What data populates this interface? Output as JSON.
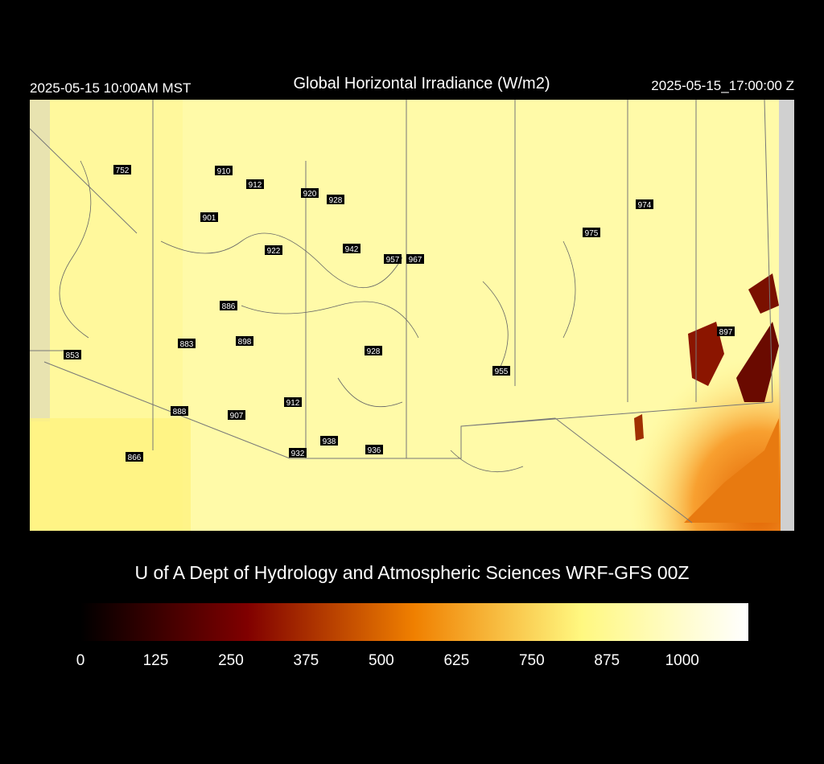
{
  "header": {
    "left": "2025-05-15 10:00AM MST",
    "title": "Global Horizontal Irradiance (W/m2)",
    "right": "2025-05-15_17:00:00 Z"
  },
  "stations": [
    752,
    910,
    912,
    920,
    928,
    901,
    922,
    942,
    957,
    967,
    974,
    975,
    886,
    883,
    898,
    853,
    928,
    955,
    897,
    912,
    888,
    907,
    938,
    932,
    936,
    866
  ],
  "credit": "U of A Dept of Hydrology and Atmospheric Sciences WRF-GFS 00Z",
  "colorbar": {
    "range": [
      0,
      1110
    ],
    "ticks": [
      0,
      125,
      250,
      375,
      500,
      625,
      750,
      875,
      1000
    ]
  }
}
